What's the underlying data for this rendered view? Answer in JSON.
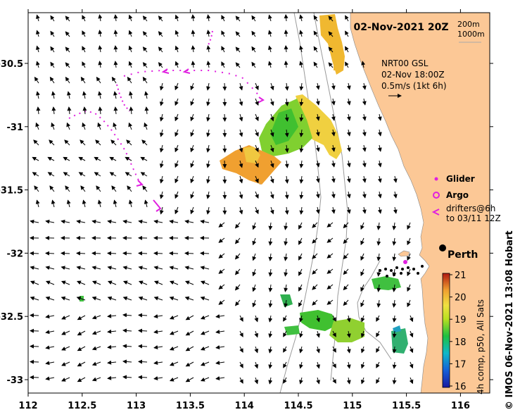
{
  "title": "02-Nov-2021 20Z",
  "contours": {
    "c200": "200m",
    "c1000": "1000m"
  },
  "current_info": {
    "line1": "NRT00 GSL",
    "line2": "02-Nov 18:00Z",
    "line3": "0.5m/s (1kt 6h)"
  },
  "legend": {
    "glider": "Glider",
    "argo": "Argo",
    "drifters1": "drifters@6h",
    "drifters2": "to 03/11 12Z"
  },
  "city": "Perth",
  "colorbar": {
    "label": "4h comp, p50, All Sats",
    "ticks": [
      21,
      20,
      19,
      18,
      17,
      16
    ]
  },
  "credit": "© IMOS 06-Nov-2021 13:08 Hobart",
  "axes": {
    "lon_ticks": [
      "112",
      "112.5",
      "113",
      "113.5",
      "114",
      "114.5",
      "115",
      "115.5",
      "116"
    ],
    "lat_ticks": [
      "-30.5",
      "-31",
      "-31.5",
      "-32",
      "-32.5",
      "-33"
    ]
  },
  "colors": {
    "land": "#FCC896",
    "track": "#E020E0",
    "frame": "#000000",
    "contour": "#9a9a9a"
  }
}
